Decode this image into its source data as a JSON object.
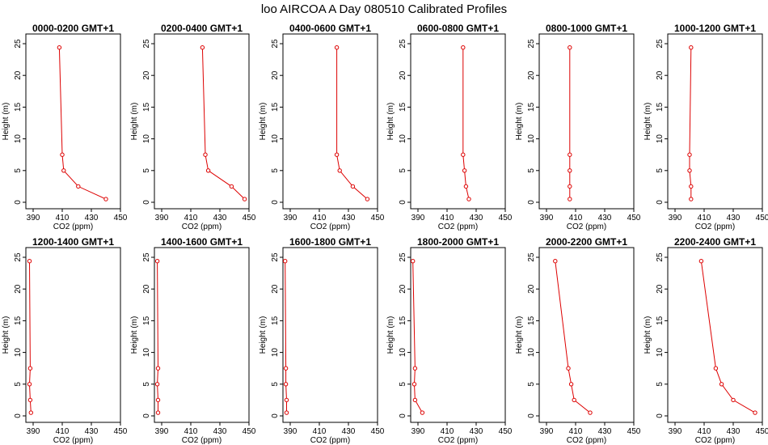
{
  "title": "loo AIRCOA A  Day 080510  Calibrated Profiles",
  "colors": {
    "series": "#dd0000",
    "axes": "#000000"
  },
  "chart_data": [
    {
      "type": "line",
      "title": "0000-0200 GMT+1",
      "xlabel": "CO2 (ppm)",
      "ylabel": "Height (m)",
      "xlim": [
        385,
        450
      ],
      "ylim": [
        0,
        25
      ],
      "xticks": [
        390,
        410,
        430,
        450
      ],
      "yticks": [
        0,
        5,
        10,
        15,
        20,
        25
      ],
      "grid": false,
      "points": [
        {
          "x": 440,
          "y": 0.5
        },
        {
          "x": 421,
          "y": 2.5
        },
        {
          "x": 411,
          "y": 5
        },
        {
          "x": 410,
          "y": 7.5
        },
        {
          "x": 408,
          "y": 24.4
        }
      ]
    },
    {
      "type": "line",
      "title": "0200-0400 GMT+1",
      "xlabel": "CO2 (ppm)",
      "ylabel": "Height (m)",
      "xlim": [
        385,
        450
      ],
      "ylim": [
        0,
        25
      ],
      "xticks": [
        390,
        410,
        430,
        450
      ],
      "yticks": [
        0,
        5,
        10,
        15,
        20,
        25
      ],
      "grid": false,
      "points": [
        {
          "x": 447,
          "y": 0.5
        },
        {
          "x": 438,
          "y": 2.5
        },
        {
          "x": 422,
          "y": 5
        },
        {
          "x": 420,
          "y": 7.5
        },
        {
          "x": 418,
          "y": 24.4
        }
      ]
    },
    {
      "type": "line",
      "title": "0400-0600 GMT+1",
      "xlabel": "CO2 (ppm)",
      "ylabel": "Height (m)",
      "xlim": [
        385,
        450
      ],
      "ylim": [
        0,
        25
      ],
      "xticks": [
        390,
        410,
        430,
        450
      ],
      "yticks": [
        0,
        5,
        10,
        15,
        20,
        25
      ],
      "grid": false,
      "points": [
        {
          "x": 443,
          "y": 0.5
        },
        {
          "x": 433,
          "y": 2.5
        },
        {
          "x": 424,
          "y": 5
        },
        {
          "x": 422,
          "y": 7.5
        },
        {
          "x": 422,
          "y": 24.4
        }
      ]
    },
    {
      "type": "line",
      "title": "0600-0800 GMT+1",
      "xlabel": "CO2 (ppm)",
      "ylabel": "Height (m)",
      "xlim": [
        385,
        450
      ],
      "ylim": [
        0,
        25
      ],
      "xticks": [
        390,
        410,
        430,
        450
      ],
      "yticks": [
        0,
        5,
        10,
        15,
        20,
        25
      ],
      "grid": false,
      "points": [
        {
          "x": 425,
          "y": 0.5
        },
        {
          "x": 423,
          "y": 2.5
        },
        {
          "x": 422,
          "y": 5
        },
        {
          "x": 421,
          "y": 7.5
        },
        {
          "x": 421,
          "y": 24.4
        }
      ]
    },
    {
      "type": "line",
      "title": "0800-1000 GMT+1",
      "xlabel": "CO2 (ppm)",
      "ylabel": "Height (m)",
      "xlim": [
        385,
        450
      ],
      "ylim": [
        0,
        25
      ],
      "xticks": [
        390,
        410,
        430,
        450
      ],
      "yticks": [
        0,
        5,
        10,
        15,
        20,
        25
      ],
      "grid": false,
      "points": [
        {
          "x": 406,
          "y": 0.5
        },
        {
          "x": 406,
          "y": 2.5
        },
        {
          "x": 406,
          "y": 5
        },
        {
          "x": 406,
          "y": 7.5
        },
        {
          "x": 406,
          "y": 24.4
        }
      ]
    },
    {
      "type": "line",
      "title": "1000-1200 GMT+1",
      "xlabel": "CO2 (ppm)",
      "ylabel": "Height (m)",
      "xlim": [
        385,
        450
      ],
      "ylim": [
        0,
        25
      ],
      "xticks": [
        390,
        410,
        430,
        450
      ],
      "yticks": [
        0,
        5,
        10,
        15,
        20,
        25
      ],
      "grid": false,
      "points": [
        {
          "x": 401,
          "y": 0.5
        },
        {
          "x": 401,
          "y": 2.5
        },
        {
          "x": 400,
          "y": 5
        },
        {
          "x": 400,
          "y": 7.5
        },
        {
          "x": 401,
          "y": 24.4
        }
      ]
    },
    {
      "type": "line",
      "title": "1200-1400 GMT+1",
      "xlabel": "CO2 (ppm)",
      "ylabel": "Height (m)",
      "xlim": [
        385,
        450
      ],
      "ylim": [
        0,
        25
      ],
      "xticks": [
        390,
        410,
        430,
        450
      ],
      "yticks": [
        0,
        5,
        10,
        15,
        20,
        25
      ],
      "grid": false,
      "points": [
        {
          "x": 388.5,
          "y": 0.5
        },
        {
          "x": 388,
          "y": 2.5
        },
        {
          "x": 387.5,
          "y": 5
        },
        {
          "x": 388,
          "y": 7.5
        },
        {
          "x": 387.5,
          "y": 24.4
        }
      ]
    },
    {
      "type": "line",
      "title": "1400-1600 GMT+1",
      "xlabel": "CO2 (ppm)",
      "ylabel": "Height (m)",
      "xlim": [
        385,
        450
      ],
      "ylim": [
        0,
        25
      ],
      "xticks": [
        390,
        410,
        430,
        450
      ],
      "yticks": [
        0,
        5,
        10,
        15,
        20,
        25
      ],
      "grid": false,
      "points": [
        {
          "x": 387.5,
          "y": 0.5
        },
        {
          "x": 387.5,
          "y": 2.5
        },
        {
          "x": 387,
          "y": 5
        },
        {
          "x": 387.5,
          "y": 7.5
        },
        {
          "x": 387,
          "y": 24.4
        }
      ]
    },
    {
      "type": "line",
      "title": "1600-1800 GMT+1",
      "xlabel": "CO2 (ppm)",
      "ylabel": "Height (m)",
      "xlim": [
        385,
        450
      ],
      "ylim": [
        0,
        25
      ],
      "xticks": [
        390,
        410,
        430,
        450
      ],
      "yticks": [
        0,
        5,
        10,
        15,
        20,
        25
      ],
      "grid": false,
      "points": [
        {
          "x": 387.5,
          "y": 0.5
        },
        {
          "x": 387.5,
          "y": 2.5
        },
        {
          "x": 387,
          "y": 5
        },
        {
          "x": 387,
          "y": 7.5
        },
        {
          "x": 386.5,
          "y": 24.4
        }
      ]
    },
    {
      "type": "line",
      "title": "1800-2000 GMT+1",
      "xlabel": "CO2 (ppm)",
      "ylabel": "Height (m)",
      "xlim": [
        385,
        450
      ],
      "ylim": [
        0,
        25
      ],
      "xticks": [
        390,
        410,
        430,
        450
      ],
      "yticks": [
        0,
        5,
        10,
        15,
        20,
        25
      ],
      "grid": false,
      "points": [
        {
          "x": 393,
          "y": 0.5
        },
        {
          "x": 388,
          "y": 2.5
        },
        {
          "x": 387.5,
          "y": 5
        },
        {
          "x": 388,
          "y": 7.5
        },
        {
          "x": 386.5,
          "y": 24.4
        }
      ]
    },
    {
      "type": "line",
      "title": "2000-2200 GMT+1",
      "xlabel": "CO2 (ppm)",
      "ylabel": "Height (m)",
      "xlim": [
        385,
        450
      ],
      "ylim": [
        0,
        25
      ],
      "xticks": [
        390,
        410,
        430,
        450
      ],
      "yticks": [
        0,
        5,
        10,
        15,
        20,
        25
      ],
      "grid": false,
      "points": [
        {
          "x": 420,
          "y": 0.5
        },
        {
          "x": 409,
          "y": 2.5
        },
        {
          "x": 407,
          "y": 5
        },
        {
          "x": 405,
          "y": 7.5
        },
        {
          "x": 396,
          "y": 24.4
        }
      ]
    },
    {
      "type": "line",
      "title": "2200-2400 GMT+1",
      "xlabel": "CO2 (ppm)",
      "ylabel": "Height (m)",
      "xlim": [
        385,
        450
      ],
      "ylim": [
        0,
        25
      ],
      "xticks": [
        390,
        410,
        430,
        450
      ],
      "yticks": [
        0,
        5,
        10,
        15,
        20,
        25
      ],
      "grid": false,
      "points": [
        {
          "x": 445,
          "y": 0.5
        },
        {
          "x": 430,
          "y": 2.5
        },
        {
          "x": 422,
          "y": 5
        },
        {
          "x": 418,
          "y": 7.5
        },
        {
          "x": 408,
          "y": 24.4
        }
      ]
    }
  ]
}
